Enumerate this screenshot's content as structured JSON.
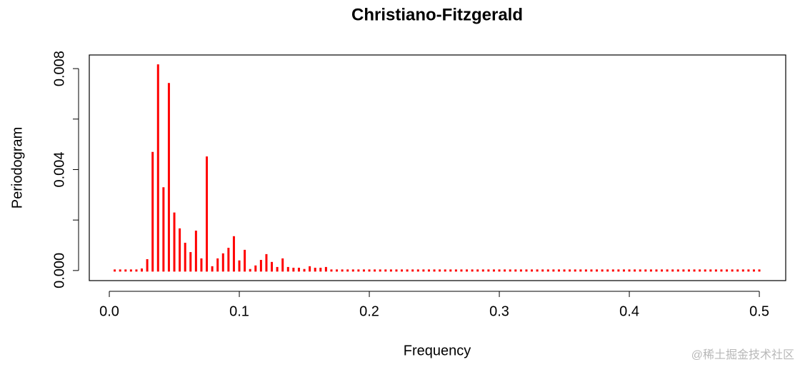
{
  "chart_data": {
    "type": "spike",
    "title": "Christiano-Fitzgerald",
    "x_label": "Frequency",
    "y_label": "Periodogram",
    "color": "#ff0000",
    "x": [
      0.004167,
      0.008333,
      0.0125,
      0.016667,
      0.020833,
      0.025,
      0.029167,
      0.033333,
      0.0375,
      0.041667,
      0.045833,
      0.05,
      0.054167,
      0.058333,
      0.0625,
      0.066667,
      0.070833,
      0.075,
      0.079167,
      0.083333,
      0.0875,
      0.091667,
      0.095833,
      0.1,
      0.104167,
      0.108333,
      0.1125,
      0.116667,
      0.120833,
      0.125,
      0.129167,
      0.133333,
      0.1375,
      0.141667,
      0.145833,
      0.15,
      0.154167,
      0.158333,
      0.1625,
      0.166667,
      0.170833,
      0.175,
      0.179167,
      0.183333,
      0.1875,
      0.191667,
      0.195833,
      0.2,
      0.204167,
      0.208333,
      0.2125,
      0.216667,
      0.220833,
      0.225,
      0.229167,
      0.233333,
      0.2375,
      0.241667,
      0.245833,
      0.25,
      0.254167,
      0.258333,
      0.2625,
      0.266667,
      0.270833,
      0.275,
      0.279167,
      0.283333,
      0.2875,
      0.291667,
      0.295833,
      0.3,
      0.304167,
      0.308333,
      0.3125,
      0.316667,
      0.320833,
      0.325,
      0.329167,
      0.333333,
      0.3375,
      0.341667,
      0.345833,
      0.35,
      0.354167,
      0.358333,
      0.3625,
      0.366667,
      0.370833,
      0.375,
      0.379167,
      0.383333,
      0.3875,
      0.391667,
      0.395833,
      0.4,
      0.404167,
      0.408333,
      0.4125,
      0.416667,
      0.420833,
      0.425,
      0.429167,
      0.433333,
      0.4375,
      0.441667,
      0.445833,
      0.45,
      0.454167,
      0.458333,
      0.4625,
      0.466667,
      0.470833,
      0.475,
      0.479167,
      0.483333,
      0.4875,
      0.491667,
      0.495833,
      0.5
    ],
    "values": [
      1e-05,
      1e-05,
      1e-05,
      2e-05,
      3e-05,
      8e-05,
      0.00045,
      0.0047,
      0.00817,
      0.0033,
      0.00743,
      0.0023,
      0.00167,
      0.0011,
      0.00073,
      0.00158,
      0.00048,
      0.00452,
      0.00017,
      0.00048,
      0.00068,
      0.0009,
      0.00136,
      0.0004,
      0.00082,
      6e-05,
      0.0002,
      0.00042,
      0.00065,
      0.00034,
      0.00014,
      0.00048,
      0.00014,
      0.00011,
      0.00011,
      6e-05,
      0.00017,
      0.00011,
      0.00011,
      0.00014,
      1e-05,
      1e-05,
      1e-05,
      1e-05,
      1e-05,
      1e-05,
      1e-05,
      1e-05,
      1e-05,
      1e-05,
      1e-05,
      1e-05,
      1e-05,
      1e-05,
      1e-05,
      1e-05,
      1e-05,
      1e-05,
      1e-05,
      1e-05,
      1e-05,
      1e-05,
      1e-05,
      1e-05,
      1e-05,
      1e-05,
      1e-05,
      1e-05,
      1e-05,
      1e-05,
      1e-05,
      1e-05,
      1e-05,
      1e-05,
      1e-05,
      1e-05,
      1e-05,
      1e-05,
      1e-05,
      1e-05,
      1e-05,
      1e-05,
      1e-05,
      1e-05,
      1e-05,
      1e-05,
      1e-05,
      1e-05,
      1e-05,
      1e-05,
      1e-05,
      1e-05,
      1e-05,
      1e-05,
      1e-05,
      1e-05,
      1e-05,
      1e-05,
      1e-05,
      1e-05,
      1e-05,
      1e-05,
      1e-05,
      1e-05,
      1e-05,
      1e-05,
      1e-05,
      1e-05,
      1e-05,
      1e-05,
      1e-05,
      1e-05,
      1e-05,
      1e-05,
      1e-05,
      1e-05,
      1e-05,
      1e-05,
      1e-05,
      1e-05
    ],
    "xlim": [
      -0.0154,
      0.5203
    ],
    "ylim": [
      -0.0004,
      0.00854
    ],
    "xticks": [
      {
        "value": 0,
        "label": "0.0"
      },
      0.1,
      0.2,
      0.3,
      0.4,
      0.5
    ],
    "yticks": [
      {
        "value": 0,
        "label": "0.000"
      },
      {
        "value": 0.002,
        "label": null
      },
      {
        "value": 0.004,
        "label": "0.004"
      },
      {
        "value": 0.006,
        "label": null
      },
      {
        "value": 0.008,
        "label": "0.008"
      }
    ],
    "watermark": "@稀土掘金技术社区"
  }
}
